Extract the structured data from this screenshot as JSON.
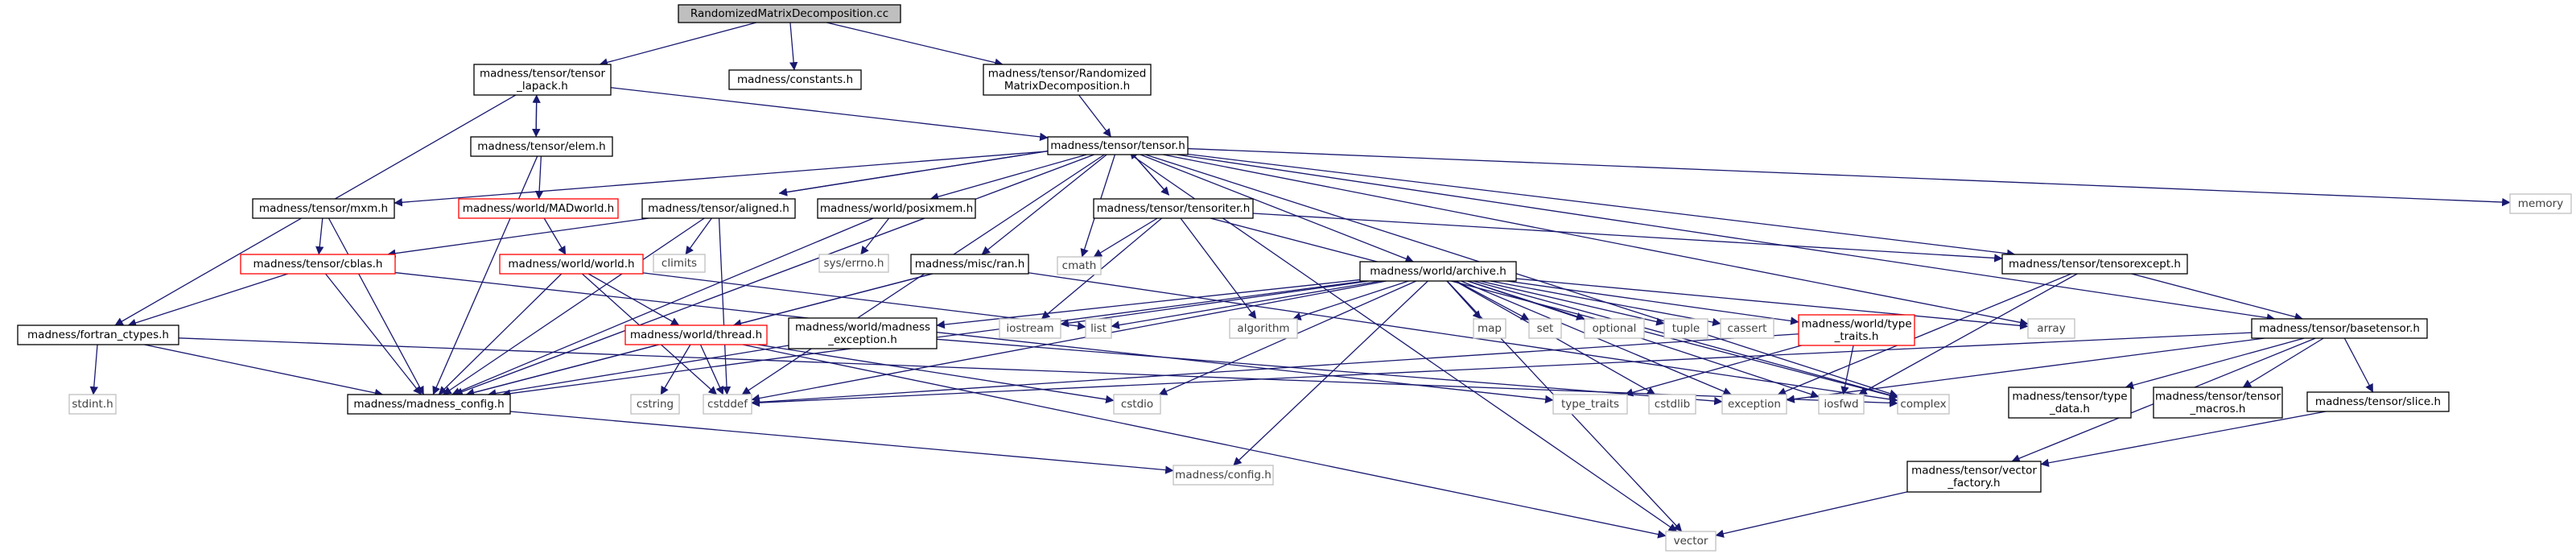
{
  "graph": {
    "colors": {
      "edge": "#191970",
      "node_border_project": "#000000",
      "node_border_missing": "#ff0000",
      "node_border_system": "#bfbfbf",
      "root_fill": "#bfbfbf",
      "node_fill": "#ffffff",
      "text": "#000000",
      "system_text": "#404040"
    },
    "nodes": [
      {
        "id": "root",
        "label": "RandomizedMatrixDecomposition.cc",
        "kind": "root"
      },
      {
        "id": "tensor_lapack",
        "label": [
          "madness/tensor/tensor",
          "_lapack.h"
        ],
        "kind": "project"
      },
      {
        "id": "constants",
        "label": "madness/constants.h",
        "kind": "project"
      },
      {
        "id": "rmd_h",
        "label": [
          "madness/tensor/Randomized",
          "MatrixDecomposition.h"
        ],
        "kind": "project"
      },
      {
        "id": "elem",
        "label": "madness/tensor/elem.h",
        "kind": "project"
      },
      {
        "id": "tensor_h",
        "label": "madness/tensor/tensor.h",
        "kind": "project"
      },
      {
        "id": "memory",
        "label": "memory",
        "kind": "system"
      },
      {
        "id": "mxm",
        "label": "madness/tensor/mxm.h",
        "kind": "project"
      },
      {
        "id": "madworld",
        "label": "madness/world/MADworld.h",
        "kind": "missing"
      },
      {
        "id": "aligned",
        "label": "madness/tensor/aligned.h",
        "kind": "project"
      },
      {
        "id": "posixmem",
        "label": "madness/world/posixmem.h",
        "kind": "project"
      },
      {
        "id": "tensoriter",
        "label": "madness/tensor/tensoriter.h",
        "kind": "project"
      },
      {
        "id": "climits",
        "label": "climits",
        "kind": "system"
      },
      {
        "id": "sys_errno",
        "label": "sys/errno.h",
        "kind": "system"
      },
      {
        "id": "cmath",
        "label": "cmath",
        "kind": "system"
      },
      {
        "id": "cblas",
        "label": "madness/tensor/cblas.h",
        "kind": "missing"
      },
      {
        "id": "world_h",
        "label": "madness/world/world.h",
        "kind": "missing"
      },
      {
        "id": "ran",
        "label": "madness/misc/ran.h",
        "kind": "project"
      },
      {
        "id": "archive",
        "label": "madness/world/archive.h",
        "kind": "project"
      },
      {
        "id": "tensorexcept",
        "label": "madness/tensor/tensorexcept.h",
        "kind": "project"
      },
      {
        "id": "iostream",
        "label": "iostream",
        "kind": "system"
      },
      {
        "id": "list",
        "label": "list",
        "kind": "system"
      },
      {
        "id": "algorithm",
        "label": "algorithm",
        "kind": "system"
      },
      {
        "id": "map",
        "label": "map",
        "kind": "system"
      },
      {
        "id": "set",
        "label": "set",
        "kind": "system"
      },
      {
        "id": "optional",
        "label": "optional",
        "kind": "system"
      },
      {
        "id": "tuple",
        "label": "tuple",
        "kind": "system"
      },
      {
        "id": "cassert",
        "label": "cassert",
        "kind": "system"
      },
      {
        "id": "type_traits_h",
        "label": [
          "madness/world/type",
          "_traits.h"
        ],
        "kind": "missing"
      },
      {
        "id": "array",
        "label": "array",
        "kind": "system"
      },
      {
        "id": "basetensor",
        "label": "madness/tensor/basetensor.h",
        "kind": "project"
      },
      {
        "id": "fortran",
        "label": "madness/fortran_ctypes.h",
        "kind": "project"
      },
      {
        "id": "thread",
        "label": "madness/world/thread.h",
        "kind": "missing"
      },
      {
        "id": "mad_exception",
        "label": [
          "madness/world/madness",
          "_exception.h"
        ],
        "kind": "project"
      },
      {
        "id": "stdint",
        "label": "stdint.h",
        "kind": "system"
      },
      {
        "id": "madness_config",
        "label": "madness/madness_config.h",
        "kind": "project"
      },
      {
        "id": "cstring",
        "label": "cstring",
        "kind": "system"
      },
      {
        "id": "cstddef",
        "label": "cstddef",
        "kind": "system"
      },
      {
        "id": "cstdio",
        "label": "cstdio",
        "kind": "system"
      },
      {
        "id": "type_traits",
        "label": "type_traits",
        "kind": "system"
      },
      {
        "id": "cstdlib",
        "label": "cstdlib",
        "kind": "system"
      },
      {
        "id": "exception",
        "label": "exception",
        "kind": "system"
      },
      {
        "id": "iosfwd",
        "label": "iosfwd",
        "kind": "system"
      },
      {
        "id": "complex",
        "label": "complex",
        "kind": "system"
      },
      {
        "id": "type_data",
        "label": [
          "madness/tensor/type",
          "_data.h"
        ],
        "kind": "project"
      },
      {
        "id": "tensor_macros",
        "label": [
          "madness/tensor/tensor",
          "_macros.h"
        ],
        "kind": "project"
      },
      {
        "id": "slice",
        "label": "madness/tensor/slice.h",
        "kind": "project"
      },
      {
        "id": "config_h",
        "label": "madness/config.h",
        "kind": "system"
      },
      {
        "id": "vector_factory",
        "label": [
          "madness/tensor/vector",
          "_factory.h"
        ],
        "kind": "project"
      },
      {
        "id": "vector",
        "label": "vector",
        "kind": "system"
      }
    ],
    "edges": [
      [
        "root",
        "tensor_lapack"
      ],
      [
        "root",
        "constants"
      ],
      [
        "root",
        "rmd_h"
      ],
      [
        "rmd_h",
        "tensor_h"
      ],
      [
        "tensor_lapack",
        "tensor_h"
      ],
      [
        "tensor_lapack",
        "fortran"
      ],
      [
        "tensor_lapack",
        "elem"
      ],
      [
        "elem",
        "tensor_lapack"
      ],
      [
        "elem",
        "madworld"
      ],
      [
        "elem",
        "madness_config"
      ],
      [
        "madworld",
        "world_h"
      ],
      [
        "tensor_h",
        "memory"
      ],
      [
        "tensor_h",
        "mxm"
      ],
      [
        "tensor_h",
        "aligned"
      ],
      [
        "tensor_h",
        "posixmem"
      ],
      [
        "tensor_h",
        "tensoriter"
      ],
      [
        "tensor_h",
        "cmath"
      ],
      [
        "tensor_h",
        "ran"
      ],
      [
        "tensor_h",
        "archive"
      ],
      [
        "tensor_h",
        "tensorexcept"
      ],
      [
        "tensor_h",
        "basetensor"
      ],
      [
        "tensor_h",
        "vector"
      ],
      [
        "tensor_h",
        "madness_config"
      ],
      [
        "tensor_h",
        "cstddef"
      ],
      [
        "tensor_h",
        "complex"
      ],
      [
        "tensor_h",
        "array"
      ],
      [
        "mxm",
        "cblas"
      ],
      [
        "mxm",
        "madness_config"
      ],
      [
        "aligned",
        "tensor_h"
      ],
      [
        "aligned",
        "climits"
      ],
      [
        "aligned",
        "cblas"
      ],
      [
        "aligned",
        "madness_config"
      ],
      [
        "aligned",
        "cstddef"
      ],
      [
        "posixmem",
        "sys_errno"
      ],
      [
        "posixmem",
        "madness_config"
      ],
      [
        "tensoriter",
        "tensor_h"
      ],
      [
        "tensoriter",
        "cmath"
      ],
      [
        "tensoriter",
        "iostream"
      ],
      [
        "tensoriter",
        "algorithm"
      ],
      [
        "tensoriter",
        "tensorexcept"
      ],
      [
        "tensoriter",
        "complex"
      ],
      [
        "cblas",
        "fortran"
      ],
      [
        "cblas",
        "madness_config"
      ],
      [
        "cblas",
        "type_traits"
      ],
      [
        "world_h",
        "thread"
      ],
      [
        "world_h",
        "list"
      ],
      [
        "world_h",
        "madness_config"
      ],
      [
        "world_h",
        "cstddef"
      ],
      [
        "ran",
        "thread"
      ],
      [
        "ran",
        "madness_config"
      ],
      [
        "ran",
        "complex"
      ],
      [
        "archive",
        "iostream"
      ],
      [
        "archive",
        "list"
      ],
      [
        "archive",
        "algorithm"
      ],
      [
        "archive",
        "map"
      ],
      [
        "archive",
        "set"
      ],
      [
        "archive",
        "optional"
      ],
      [
        "archive",
        "tuple"
      ],
      [
        "archive",
        "cassert"
      ],
      [
        "archive",
        "type_traits_h"
      ],
      [
        "archive",
        "array"
      ],
      [
        "archive",
        "mad_exception"
      ],
      [
        "archive",
        "config_h"
      ],
      [
        "archive",
        "vector"
      ],
      [
        "archive",
        "madness_config"
      ],
      [
        "archive",
        "cstddef"
      ],
      [
        "archive",
        "cstdio"
      ],
      [
        "archive",
        "complex"
      ],
      [
        "archive",
        "iosfwd"
      ],
      [
        "archive",
        "cstdlib"
      ],
      [
        "archive",
        "exception"
      ],
      [
        "type_traits_h",
        "type_traits"
      ],
      [
        "type_traits_h",
        "iosfwd"
      ],
      [
        "type_traits_h",
        "cstddef"
      ],
      [
        "tensorexcept",
        "basetensor"
      ],
      [
        "tensorexcept",
        "exception"
      ],
      [
        "tensorexcept",
        "iosfwd"
      ],
      [
        "basetensor",
        "type_data"
      ],
      [
        "basetensor",
        "tensor_macros"
      ],
      [
        "basetensor",
        "slice"
      ],
      [
        "basetensor",
        "vector_factory"
      ],
      [
        "basetensor",
        "cstddef"
      ],
      [
        "basetensor",
        "exception"
      ],
      [
        "fortran",
        "stdint"
      ],
      [
        "fortran",
        "madness_config"
      ],
      [
        "fortran",
        "complex"
      ],
      [
        "thread",
        "madness_config"
      ],
      [
        "thread",
        "cstring"
      ],
      [
        "thread",
        "cstddef"
      ],
      [
        "thread",
        "cstdio"
      ],
      [
        "thread",
        "vector"
      ],
      [
        "mad_exception",
        "madness_config"
      ],
      [
        "mad_exception",
        "exception"
      ],
      [
        "slice",
        "vector_factory"
      ],
      [
        "vector_factory",
        "vector"
      ],
      [
        "madness_config",
        "config_h"
      ]
    ]
  }
}
